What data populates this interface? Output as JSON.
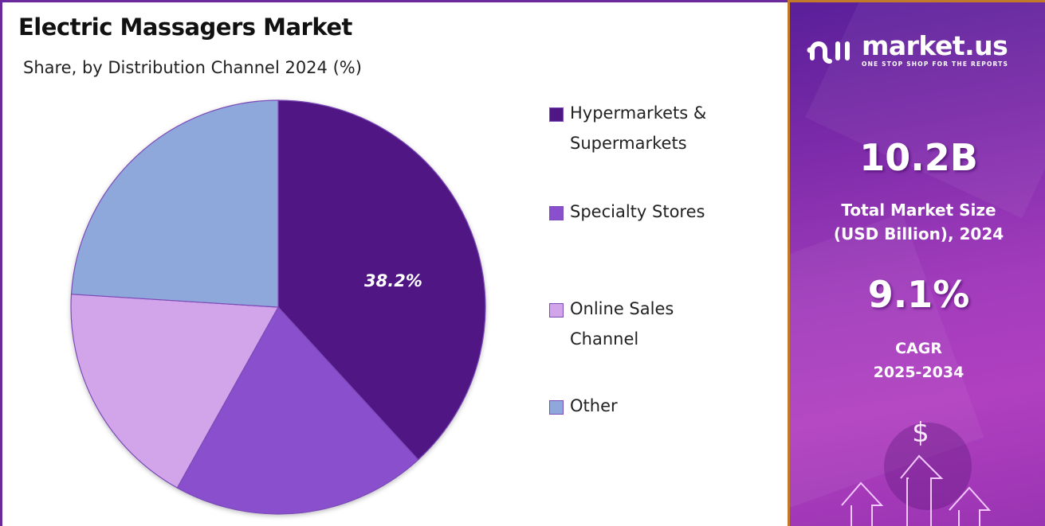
{
  "header": {
    "title": "Electric Massagers Market",
    "subtitle": "Share, by Distribution Channel 2024 (%)"
  },
  "chart_data": {
    "type": "pie",
    "title": "Electric Massagers Market",
    "subtitle": "Share, by Distribution Channel 2024 (%)",
    "categories": [
      "Hypermarkets & Supermarkets",
      "Specialty Stores",
      "Online Sales Channel",
      "Other"
    ],
    "values": [
      38.2,
      19.9,
      17.9,
      24.0
    ],
    "colors": [
      "#4f1784",
      "#8a4fcc",
      "#d2a4ea",
      "#8ea8dc"
    ],
    "data_labels": [
      {
        "category": "Hypermarkets & Supermarkets",
        "text": "38.2%"
      }
    ],
    "start_angle": "12 o'clock, clockwise",
    "legend_position": "right"
  },
  "pie": {
    "label": "38.2%"
  },
  "legend": {
    "items": [
      {
        "line1": "Hypermarkets &",
        "line2": "Supermarkets",
        "color": "#4f1784"
      },
      {
        "line1": "Specialty Stores",
        "line2": "",
        "color": "#8a4fcc"
      },
      {
        "line1": "Online Sales",
        "line2": "Channel",
        "color": "#d2a4ea"
      },
      {
        "line1": "Other",
        "line2": "",
        "color": "#8ea8dc"
      }
    ]
  },
  "sidebar": {
    "brand": "market.us",
    "tagline": "ONE STOP SHOP FOR THE REPORTS",
    "market_size_value": "10.2B",
    "market_size_label_line1": "Total Market Size",
    "market_size_label_line2": "(USD Billion), 2024",
    "cagr_value": "9.1%",
    "cagr_label_line1": "CAGR",
    "cagr_label_line2": "2025-2034",
    "icon": "dollar-growth-arrows-icon"
  }
}
